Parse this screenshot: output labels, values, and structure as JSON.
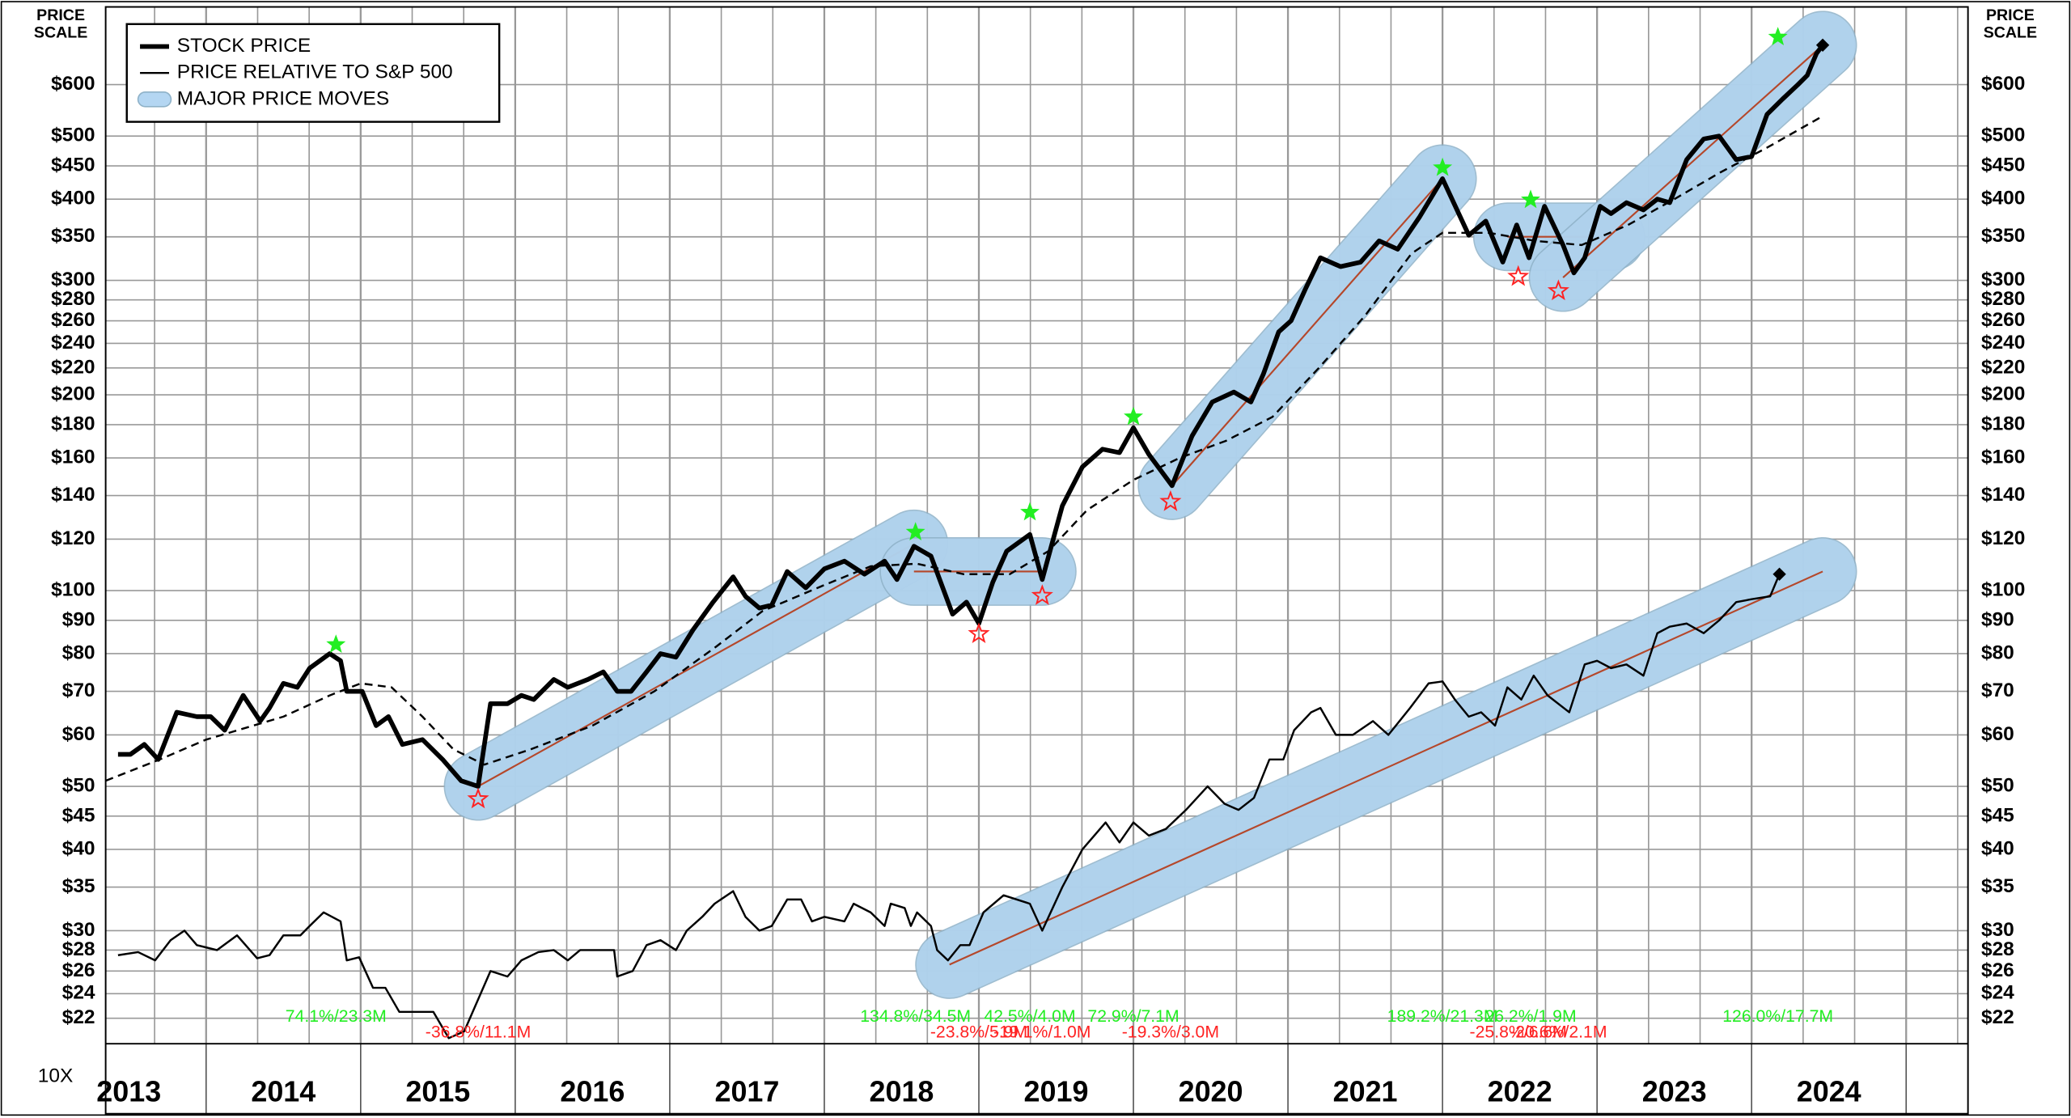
{
  "chart_data": {
    "type": "line",
    "log_y": true,
    "grid": true,
    "legend": "upper left",
    "scale_title": [
      "PRICE",
      "SCALE"
    ],
    "corner_label": "10X",
    "xlim": [
      2013.35,
      2025.4
    ],
    "xticks": [
      {
        "value": 2013.5,
        "label": "2013"
      },
      {
        "value": 2014.5,
        "label": "2014"
      },
      {
        "value": 2015.5,
        "label": "2015"
      },
      {
        "value": 2016.5,
        "label": "2016"
      },
      {
        "value": 2017.5,
        "label": "2017"
      },
      {
        "value": 2018.5,
        "label": "2018"
      },
      {
        "value": 2019.5,
        "label": "2019"
      },
      {
        "value": 2020.5,
        "label": "2020"
      },
      {
        "value": 2021.5,
        "label": "2021"
      },
      {
        "value": 2022.5,
        "label": "2022"
      },
      {
        "value": 2023.5,
        "label": "2023"
      },
      {
        "value": 2024.5,
        "label": "2024"
      }
    ],
    "ylim": [
      20.1,
      790
    ],
    "yticks": [
      {
        "value": 22,
        "label": "$22"
      },
      {
        "value": 24,
        "label": "$24"
      },
      {
        "value": 26,
        "label": "$26"
      },
      {
        "value": 28,
        "label": "$28"
      },
      {
        "value": 30,
        "label": "$30"
      },
      {
        "value": 35,
        "label": "$35"
      },
      {
        "value": 40,
        "label": "$40"
      },
      {
        "value": 45,
        "label": "$45"
      },
      {
        "value": 50,
        "label": "$50"
      },
      {
        "value": 60,
        "label": "$60"
      },
      {
        "value": 70,
        "label": "$70"
      },
      {
        "value": 80,
        "label": "$80"
      },
      {
        "value": 90,
        "label": "$90"
      },
      {
        "value": 100,
        "label": "$100"
      },
      {
        "value": 120,
        "label": "$120"
      },
      {
        "value": 140,
        "label": "$140"
      },
      {
        "value": 160,
        "label": "$160"
      },
      {
        "value": 180,
        "label": "$180"
      },
      {
        "value": 200,
        "label": "$200"
      },
      {
        "value": 220,
        "label": "$220"
      },
      {
        "value": 240,
        "label": "$240"
      },
      {
        "value": 260,
        "label": "$260"
      },
      {
        "value": 280,
        "label": "$280"
      },
      {
        "value": 300,
        "label": "$300"
      },
      {
        "value": 350,
        "label": "$350"
      },
      {
        "value": 400,
        "label": "$400"
      },
      {
        "value": 450,
        "label": "$450"
      },
      {
        "value": 500,
        "label": "$500"
      },
      {
        "value": 600,
        "label": "$600"
      }
    ],
    "series": [
      {
        "name": "STOCK PRICE",
        "color": "#000000",
        "width": 3.5,
        "x": [
          2013.43,
          2013.51,
          2013.6,
          2013.69,
          2013.81,
          2013.94,
          2014.03,
          2014.12,
          2014.24,
          2014.35,
          2014.41,
          2014.5,
          2014.59,
          2014.67,
          2014.8,
          2014.87,
          2014.91,
          2015.01,
          2015.1,
          2015.18,
          2015.27,
          2015.4,
          2015.53,
          2015.65,
          2015.76,
          2015.84,
          2015.95,
          2016.04,
          2016.12,
          2016.25,
          2016.34,
          2016.47,
          2016.57,
          2016.66,
          2016.75,
          2016.85,
          2016.94,
          2017.04,
          2017.15,
          2017.28,
          2017.41,
          2017.49,
          2017.58,
          2017.66,
          2017.76,
          2017.88,
          2018.0,
          2018.13,
          2018.26,
          2018.39,
          2018.47,
          2018.58,
          2018.69,
          2018.83,
          2018.92,
          2019.0,
          2019.09,
          2019.18,
          2019.33,
          2019.41,
          2019.54,
          2019.67,
          2019.8,
          2019.91,
          2020.0,
          2020.1,
          2020.25,
          2020.38,
          2020.51,
          2020.65,
          2020.76,
          2020.84,
          2020.94,
          2021.02,
          2021.11,
          2021.21,
          2021.34,
          2021.47,
          2021.59,
          2021.71,
          2021.85,
          2022.0,
          2022.17,
          2022.28,
          2022.39,
          2022.48,
          2022.56,
          2022.66,
          2022.78,
          2022.85,
          2022.92,
          2023.02,
          2023.09,
          2023.19,
          2023.3,
          2023.39,
          2023.47,
          2023.58,
          2023.69,
          2023.79,
          2023.9,
          2024.0,
          2024.1,
          2024.2,
          2024.3,
          2024.36,
          2024.42,
          2024.46
        ],
        "values": [
          56,
          56,
          58,
          55,
          65,
          64,
          64,
          61,
          69,
          63,
          66,
          72,
          71,
          76,
          80,
          78,
          70,
          70,
          62,
          64,
          58,
          59,
          55,
          51,
          50,
          67,
          67,
          69,
          68,
          73,
          71,
          73,
          75,
          70,
          70,
          75,
          80,
          79,
          87,
          96,
          105,
          98,
          94,
          95,
          107,
          101,
          108,
          111,
          106,
          111,
          104,
          117,
          113,
          92,
          96,
          89,
          103,
          115,
          122,
          104,
          135,
          155,
          165,
          163,
          178,
          162,
          145,
          173,
          195,
          202,
          195,
          215,
          250,
          260,
          290,
          325,
          315,
          320,
          345,
          335,
          375,
          430,
          352,
          370,
          320,
          365,
          325,
          390,
          340,
          308,
          325,
          390,
          380,
          395,
          385,
          400,
          395,
          460,
          495,
          500,
          460,
          465,
          540,
          570,
          600,
          620,
          670,
          690
        ]
      },
      {
        "name": "PRICE RELATIVE TO S&P 500",
        "color": "#000000",
        "width": 1.5,
        "x": [
          2013.43,
          2013.56,
          2013.67,
          2013.77,
          2013.86,
          2013.94,
          2014.07,
          2014.2,
          2014.33,
          2014.41,
          2014.5,
          2014.61,
          2014.67,
          2014.76,
          2014.87,
          2014.91,
          2014.99,
          2015.08,
          2015.16,
          2015.25,
          2015.38,
          2015.47,
          2015.57,
          2015.67,
          2015.84,
          2015.95,
          2016.04,
          2016.15,
          2016.25,
          2016.34,
          2016.42,
          2016.55,
          2016.64,
          2016.66,
          2016.76,
          2016.85,
          2016.94,
          2017.04,
          2017.11,
          2017.21,
          2017.29,
          2017.41,
          2017.49,
          2017.58,
          2017.66,
          2017.76,
          2017.85,
          2017.92,
          2018.0,
          2018.13,
          2018.19,
          2018.3,
          2018.39,
          2018.43,
          2018.52,
          2018.56,
          2018.6,
          2018.69,
          2018.73,
          2018.8,
          2018.88,
          2018.94,
          2019.03,
          2019.16,
          2019.33,
          2019.41,
          2019.54,
          2019.67,
          2019.82,
          2019.91,
          2020.0,
          2020.1,
          2020.21,
          2020.34,
          2020.48,
          2020.59,
          2020.68,
          2020.78,
          2020.88,
          2020.97,
          2021.04,
          2021.15,
          2021.21,
          2021.31,
          2021.42,
          2021.55,
          2021.65,
          2021.79,
          2021.91,
          2022.0,
          2022.08,
          2022.17,
          2022.25,
          2022.34,
          2022.42,
          2022.51,
          2022.59,
          2022.68,
          2022.82,
          2022.92,
          2023.0,
          2023.09,
          2023.19,
          2023.3,
          2023.39,
          2023.47,
          2023.58,
          2023.69,
          2023.79,
          2023.9,
          2024.0,
          2024.12,
          2024.18
        ],
        "values": [
          27.5,
          27.8,
          27,
          29,
          30,
          28.5,
          28,
          29.5,
          27.2,
          27.5,
          29.5,
          29.5,
          30.5,
          32,
          31,
          27,
          27.3,
          24.5,
          24.5,
          22.5,
          22.5,
          22.5,
          20.5,
          21,
          26,
          25.5,
          27,
          27.8,
          28,
          27,
          28,
          28,
          28,
          25.5,
          26,
          28.5,
          29,
          28,
          30,
          31.5,
          33,
          34.5,
          31.5,
          30,
          30.5,
          33.5,
          33.5,
          31,
          31.5,
          31,
          33,
          32,
          30.5,
          33,
          32.5,
          30.5,
          32,
          30.5,
          28,
          27,
          28.5,
          28.5,
          32,
          34,
          33,
          30,
          35,
          40,
          44,
          41,
          44,
          42,
          43,
          46,
          50,
          47,
          46,
          48,
          55,
          55,
          61,
          65,
          66,
          60,
          60,
          63,
          60,
          66,
          72,
          72.5,
          68,
          64,
          65,
          62,
          71,
          68,
          74,
          69,
          65,
          77,
          78,
          76,
          77,
          74,
          86,
          88,
          89,
          86,
          90,
          96,
          97,
          98,
          106
        ]
      },
      {
        "color": "#000000",
        "width": 1.5,
        "dash": true,
        "x": [
          2013.35,
          2013.7,
          2014.0,
          2014.5,
          2014.8,
          2015.0,
          2015.2,
          2015.4,
          2015.6,
          2015.8,
          2016.1,
          2016.5,
          2016.9,
          2017.3,
          2017.6,
          2018.0,
          2018.3,
          2018.6,
          2018.9,
          2019.2,
          2019.45,
          2019.7,
          2020.0,
          2020.3,
          2020.6,
          2020.9,
          2021.2,
          2021.5,
          2021.8,
          2022.0,
          2022.3,
          2022.6,
          2022.9,
          2023.2,
          2023.5,
          2023.8,
          2024.1,
          2024.45
        ],
        "values": [
          51,
          55,
          59,
          64,
          69,
          72,
          71,
          64,
          57,
          54,
          57,
          62,
          70,
          82,
          93,
          102,
          109,
          110,
          106,
          106,
          115,
          133,
          148,
          160,
          170,
          185,
          220,
          265,
          330,
          355,
          355,
          345,
          340,
          365,
          400,
          440,
          480,
          535
        ]
      }
    ],
    "major_moves": {
      "name": "MAJOR PRICE MOVES",
      "color": "#b4d6f2",
      "line_color": "#b5472a",
      "moves": [
        {
          "x": [
            2015.76,
            2018.58
          ],
          "values": [
            50,
            118
          ]
        },
        {
          "x": [
            2018.58,
            2019.41
          ],
          "values": [
            107,
            107
          ]
        },
        {
          "x": [
            2020.25,
            2022.0
          ],
          "values": [
            145,
            430
          ]
        },
        {
          "x": [
            2022.42,
            2023.09
          ],
          "values": [
            350,
            350
          ]
        },
        {
          "x": [
            2022.78,
            2024.46
          ],
          "values": [
            303,
            690
          ]
        },
        {
          "x": [
            2018.81,
            2024.46
          ],
          "values": [
            26.6,
            107
          ]
        }
      ]
    },
    "peaks": {
      "color": "#22ee22",
      "points": [
        {
          "x": 2014.84,
          "value": 82.6,
          "label": "74.1%/23.3M"
        },
        {
          "x": 2018.59,
          "value": 123,
          "label": "134.8%/34.5M"
        },
        {
          "x": 2019.33,
          "value": 132,
          "label": "42.5%/4.0M"
        },
        {
          "x": 2020.0,
          "value": 185,
          "label": "72.9%/7.1M"
        },
        {
          "x": 2022.0,
          "value": 447,
          "label": "189.2%/21.3M"
        },
        {
          "x": 2022.57,
          "value": 399,
          "label": "26.2%/1.9M"
        },
        {
          "x": 2024.17,
          "value": 710,
          "label": "126.0%/17.7M"
        }
      ]
    },
    "troughs": {
      "color": "#ff2222",
      "points": [
        {
          "x": 2015.76,
          "value": 47.8,
          "label": "-36.8%/11.1M"
        },
        {
          "x": 2019.0,
          "value": 85.8,
          "label": "-23.8%/5.9M"
        },
        {
          "x": 2019.41,
          "value": 98.2,
          "label": "-19.1%/1.0M"
        },
        {
          "x": 2020.24,
          "value": 137,
          "label": "-19.3%/3.0M"
        },
        {
          "x": 2022.49,
          "value": 304,
          "label": "-25.8%/6.6M"
        },
        {
          "x": 2022.75,
          "value": 289,
          "label": "-20.6%/2.1M"
        }
      ]
    }
  }
}
